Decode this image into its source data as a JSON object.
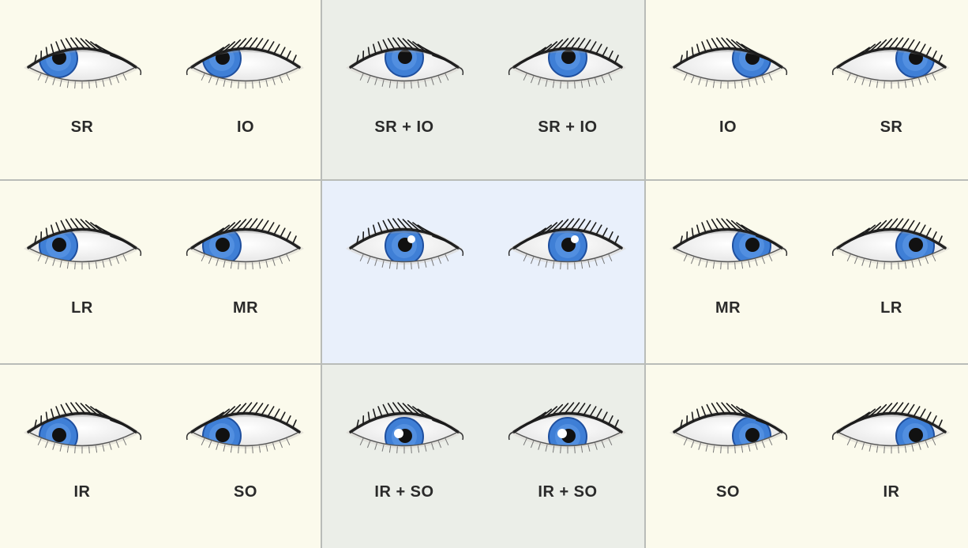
{
  "colors": {
    "cell_side": "#fbfaec",
    "cell_vertical": "#ebeee8",
    "cell_center": "#e9f0fb",
    "grid_line": "#b7bab6",
    "iris": "#3f7fd6",
    "iris_rim": "#1f4f9e",
    "pupil": "#111111",
    "lid": "#222222"
  },
  "grid": {
    "rows": [
      {
        "cells": [
          {
            "tone": "side",
            "eyes": [
              {
                "side": "right",
                "gaze": "up-right",
                "label": "SR"
              },
              {
                "side": "left",
                "gaze": "up-right",
                "label": "IO"
              }
            ]
          },
          {
            "tone": "vertical",
            "eyes": [
              {
                "side": "right",
                "gaze": "up",
                "label": "SR + IO"
              },
              {
                "side": "left",
                "gaze": "up",
                "label": "SR + IO"
              }
            ]
          },
          {
            "tone": "side",
            "eyes": [
              {
                "side": "right",
                "gaze": "up-left",
                "label": "IO"
              },
              {
                "side": "left",
                "gaze": "up-left",
                "label": "SR"
              }
            ]
          }
        ]
      },
      {
        "cells": [
          {
            "tone": "side",
            "eyes": [
              {
                "side": "right",
                "gaze": "right",
                "label": "LR"
              },
              {
                "side": "left",
                "gaze": "right",
                "label": "MR"
              }
            ]
          },
          {
            "tone": "center",
            "eyes": [
              {
                "side": "right",
                "gaze": "center",
                "label": ""
              },
              {
                "side": "left",
                "gaze": "center",
                "label": ""
              }
            ]
          },
          {
            "tone": "side",
            "eyes": [
              {
                "side": "right",
                "gaze": "left",
                "label": "MR"
              },
              {
                "side": "left",
                "gaze": "left",
                "label": "LR"
              }
            ]
          }
        ]
      },
      {
        "cells": [
          {
            "tone": "side",
            "eyes": [
              {
                "side": "right",
                "gaze": "down-right",
                "label": "IR"
              },
              {
                "side": "left",
                "gaze": "down-right",
                "label": "SO"
              }
            ]
          },
          {
            "tone": "vertical",
            "eyes": [
              {
                "side": "right",
                "gaze": "down",
                "label": "IR + SO"
              },
              {
                "side": "left",
                "gaze": "down",
                "label": "IR + SO"
              }
            ]
          },
          {
            "tone": "side",
            "eyes": [
              {
                "side": "right",
                "gaze": "down-left",
                "label": "SO"
              },
              {
                "side": "left",
                "gaze": "down-left",
                "label": "IR"
              }
            ]
          }
        ]
      }
    ]
  }
}
